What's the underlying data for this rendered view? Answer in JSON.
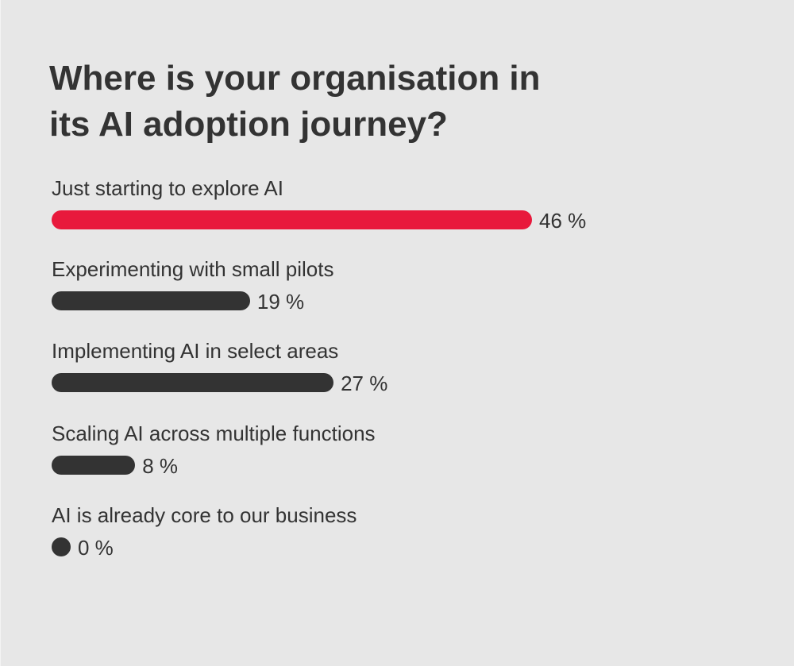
{
  "chart_data": {
    "type": "bar",
    "orientation": "horizontal",
    "title": "Where is your organisation in its AI adoption journey?",
    "categories": [
      "Just starting to explore AI",
      "Experimenting with small pilots",
      "Implementing AI in select areas",
      "Scaling AI across multiple functions",
      "AI is already core to our business"
    ],
    "values": [
      46,
      19,
      27,
      8,
      0
    ],
    "value_labels": [
      "46 %",
      "19 %",
      "27 %",
      "8 %",
      "0 %"
    ],
    "highlight_index": 0,
    "colors": {
      "highlight": "#e8193c",
      "bar": "#333333",
      "background": "#e7e7e7",
      "text": "#333333"
    }
  }
}
